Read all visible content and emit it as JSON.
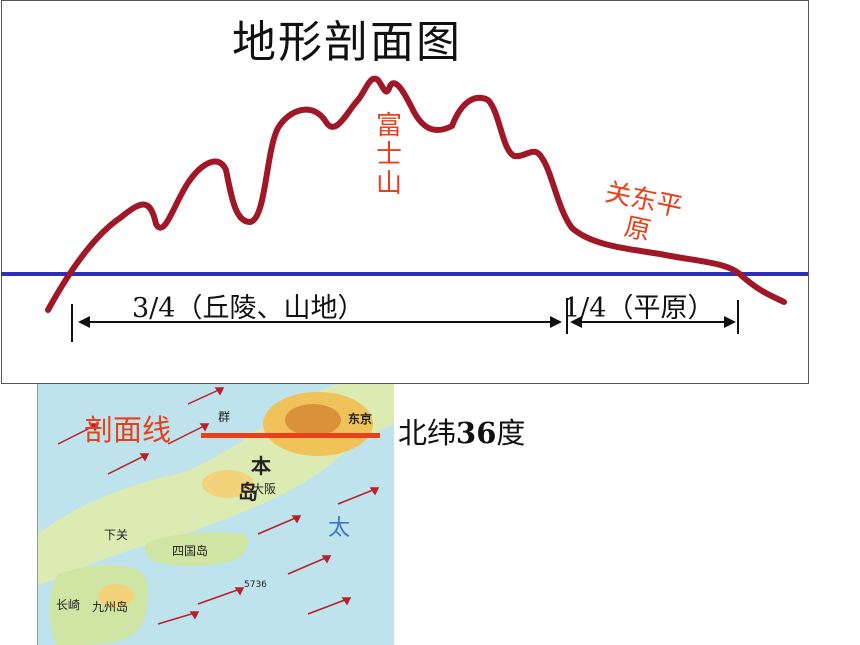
{
  "title": "地形剖面图",
  "peak_label": "富士山",
  "plain_label": "关东平原",
  "span_left_label": "3/4（丘陵、山地）",
  "span_right_label": "1/4（平原）",
  "section_line_label": "剖面线",
  "latitude": {
    "prefix": "北纬",
    "value": "36",
    "suffix": "度"
  },
  "map_labels": {
    "tokyo": "东京",
    "osaka": "大阪",
    "kyushu": "九州岛",
    "shikoku": "四国岛",
    "honshu_1": "本",
    "honshu_2": "岛",
    "pacific": "太",
    "shimonoseki": "下关",
    "nagasaki": "长崎",
    "gunma": "群",
    "depth": "5736"
  },
  "colors": {
    "profile_line": "#a01828",
    "sea_level_line": "#2d2fb8",
    "accent_label": "#e8401a"
  }
}
